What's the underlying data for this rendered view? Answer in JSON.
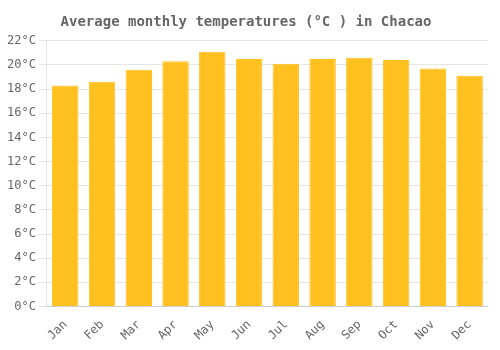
{
  "chart_data": {
    "type": "bar",
    "title": "Average monthly temperatures (°C ) in Chacao",
    "categories": [
      "Jan",
      "Feb",
      "Mar",
      "Apr",
      "May",
      "Jun",
      "Jul",
      "Aug",
      "Sep",
      "Oct",
      "Nov",
      "Dec"
    ],
    "values": [
      18.3,
      18.6,
      19.6,
      20.3,
      21.1,
      20.5,
      20.1,
      20.5,
      20.6,
      20.4,
      19.7,
      19.1
    ],
    "color": "#FFC020",
    "ylim": [
      0,
      22
    ],
    "yticks": [
      {
        "value": 0,
        "label": "0°C"
      },
      {
        "value": 2,
        "label": "2°C"
      },
      {
        "value": 4,
        "label": "4°C"
      },
      {
        "value": 6,
        "label": "6°C"
      },
      {
        "value": 8,
        "label": "8°C"
      },
      {
        "value": 10,
        "label": "10°C"
      },
      {
        "value": 12,
        "label": "12°C"
      },
      {
        "value": 14,
        "label": "14°C"
      },
      {
        "value": 16,
        "label": "16°C"
      },
      {
        "value": 18,
        "label": "18°C"
      },
      {
        "value": 20,
        "label": "20°C"
      },
      {
        "value": 22,
        "label": "22°C"
      }
    ],
    "grid": true
  }
}
